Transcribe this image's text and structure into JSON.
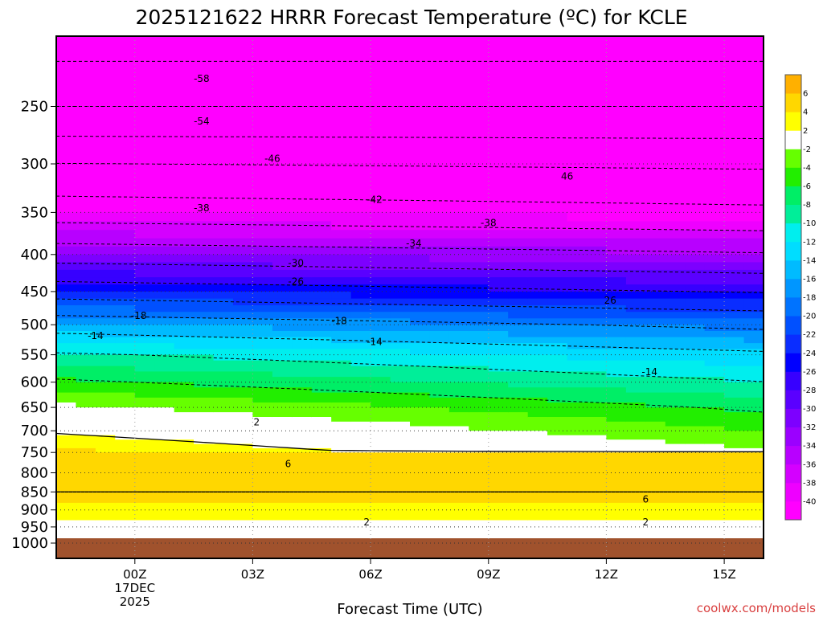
{
  "chart_data": {
    "type": "heatmap",
    "title": "2025121622 HRRR Forecast Temperature (ºC) for KCLE",
    "xlabel": "Forecast Time (UTC)",
    "ylabel": "",
    "credit": "coolwx.com/models",
    "x_ticks": [
      {
        "hour": 0,
        "label": "00Z",
        "sub1": "17DEC",
        "sub2": "2025"
      },
      {
        "hour": 3,
        "label": "03Z"
      },
      {
        "hour": 6,
        "label": "06Z"
      },
      {
        "hour": 9,
        "label": "09Z"
      },
      {
        "hour": 12,
        "label": "12Z"
      },
      {
        "hour": 15,
        "label": "15Z"
      }
    ],
    "xlim": [
      -2,
      16
    ],
    "y_ticks": [
      250,
      300,
      350,
      400,
      450,
      500,
      550,
      600,
      650,
      700,
      750,
      800,
      850,
      900,
      950,
      1000
    ],
    "ylim_hPa": [
      200,
      1000
    ],
    "y_scale": "log",
    "grid": true,
    "colorbar": {
      "levels": [
        -40,
        -38,
        -36,
        -34,
        -32,
        -30,
        -28,
        -26,
        -24,
        -22,
        -20,
        -18,
        -16,
        -14,
        -12,
        -10,
        -8,
        -6,
        -4,
        -2,
        2,
        4,
        6
      ],
      "tick_labels": [
        "-40",
        "-38",
        "-36",
        "-34",
        "-32",
        "-30",
        "-28",
        "-26",
        "-24",
        "-22",
        "-20",
        "-18",
        "-16",
        "-14",
        "-12",
        "-10",
        "-8",
        "-6",
        "-4",
        "-2",
        "2",
        "4",
        "6"
      ],
      "colors": [
        "#ff00ff",
        "#ee00ff",
        "#d400ff",
        "#b800ff",
        "#9b00ff",
        "#7d00ff",
        "#5a00ff",
        "#3700ff",
        "#0000ff",
        "#0a2dff",
        "#0050ff",
        "#0073ff",
        "#0096ff",
        "#00bbff",
        "#00ddff",
        "#00eeee",
        "#00ee99",
        "#00ee66",
        "#22ee00",
        "#66ff00",
        "#ffffff",
        "#ffff00",
        "#ffd700",
        "#ffb000"
      ]
    },
    "contour_labels": [
      {
        "hour": 1.7,
        "p": 229,
        "text": "-58"
      },
      {
        "hour": 1.7,
        "p": 262,
        "text": "-54"
      },
      {
        "hour": 3.5,
        "p": 295,
        "text": "-46"
      },
      {
        "hour": 11.0,
        "p": 312,
        "text": "46"
      },
      {
        "hour": 1.7,
        "p": 345,
        "text": "-38"
      },
      {
        "hour": 6.1,
        "p": 336,
        "text": "-42"
      },
      {
        "hour": 9.0,
        "p": 362,
        "text": "-38"
      },
      {
        "hour": 7.1,
        "p": 386,
        "text": "-34"
      },
      {
        "hour": 4.1,
        "p": 411,
        "text": "-30"
      },
      {
        "hour": 4.1,
        "p": 436,
        "text": "-26"
      },
      {
        "hour": 12.1,
        "p": 463,
        "text": "26"
      },
      {
        "hour": 0.1,
        "p": 486,
        "text": "-18"
      },
      {
        "hour": 5.2,
        "p": 494,
        "text": "-18"
      },
      {
        "hour": -1.0,
        "p": 518,
        "text": "-14"
      },
      {
        "hour": 6.1,
        "p": 528,
        "text": "-14"
      },
      {
        "hour": 13.1,
        "p": 581,
        "text": "-14"
      },
      {
        "hour": 3.1,
        "p": 681,
        "text": "2"
      },
      {
        "hour": 3.9,
        "p": 778,
        "text": "6"
      },
      {
        "hour": 13.0,
        "p": 870,
        "text": "6"
      },
      {
        "hour": 5.9,
        "p": 936,
        "text": "2"
      },
      {
        "hour": 13.0,
        "p": 936,
        "text": "2"
      }
    ],
    "temperature_profile_00Z": [
      {
        "p": 200,
        "t": -60
      },
      {
        "p": 250,
        "t": -54
      },
      {
        "p": 300,
        "t": -46
      },
      {
        "p": 350,
        "t": -40
      },
      {
        "p": 400,
        "t": -32
      },
      {
        "p": 450,
        "t": -24
      },
      {
        "p": 500,
        "t": -16
      },
      {
        "p": 550,
        "t": -10
      },
      {
        "p": 600,
        "t": -6
      },
      {
        "p": 650,
        "t": -2
      },
      {
        "p": 700,
        "t": 1
      },
      {
        "p": 750,
        "t": 4
      },
      {
        "p": 800,
        "t": 5
      },
      {
        "p": 850,
        "t": 6
      },
      {
        "p": 900,
        "t": 3
      },
      {
        "p": 950,
        "t": 1
      }
    ]
  }
}
